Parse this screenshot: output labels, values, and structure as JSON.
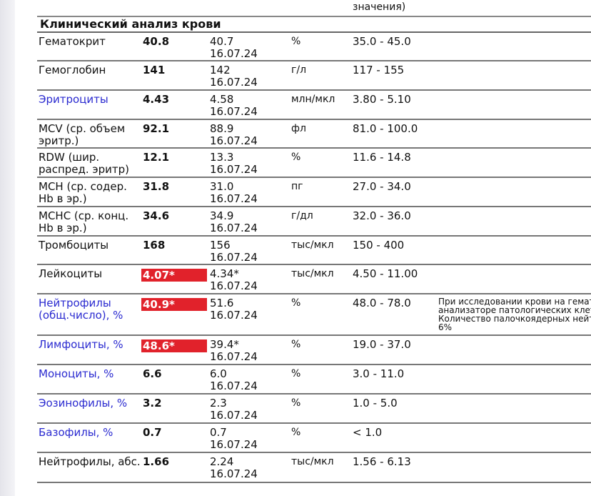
{
  "header": {
    "ref_header_tail": "значения)"
  },
  "section_title": "Клинический анализ крови",
  "rows": [
    {
      "name": "Гематокрит",
      "result": "40.8",
      "prev": "40.7",
      "prev_date": "16.07.24",
      "unit": "%",
      "ref": "35.0 - 45.0",
      "flag": false,
      "link": false
    },
    {
      "name": "Гемоглобин",
      "result": "141",
      "prev": "142",
      "prev_date": "16.07.24",
      "unit": "г/л",
      "ref": "117 - 155",
      "flag": false,
      "link": false
    },
    {
      "name": "Эритроциты",
      "result": "4.43",
      "prev": "4.58",
      "prev_date": "16.07.24",
      "unit": "млн/мкл",
      "ref": "3.80 - 5.10",
      "flag": false,
      "link": true
    },
    {
      "name": "MCV (ср. объем эритр.)",
      "result": "92.1",
      "prev": "88.9",
      "prev_date": "16.07.24",
      "unit": "фл",
      "ref": "81.0 - 100.0",
      "flag": false,
      "link": false
    },
    {
      "name": "RDW (шир. распред. эритр)",
      "result": "12.1",
      "prev": "13.3",
      "prev_date": "16.07.24",
      "unit": "%",
      "ref": "11.6 - 14.8",
      "flag": false,
      "link": false
    },
    {
      "name": "MCH (ср. содер. Hb в эр.)",
      "result": "31.8",
      "prev": "31.0",
      "prev_date": "16.07.24",
      "unit": "пг",
      "ref": "27.0 - 34.0",
      "flag": false,
      "link": false
    },
    {
      "name": "MCHC (ср. конц. Hb в эр.)",
      "result": "34.6",
      "prev": "34.9",
      "prev_date": "16.07.24",
      "unit": "г/дл",
      "ref": "32.0 - 36.0",
      "flag": false,
      "link": false
    },
    {
      "name": "Тромбоциты",
      "result": "168",
      "prev": "156",
      "prev_date": "16.07.24",
      "unit": "тыс/мкл",
      "ref": "150 - 400",
      "flag": false,
      "link": false
    },
    {
      "name": "Лейкоциты",
      "result": "4.07*",
      "prev": "4.34*",
      "prev_date": "16.07.24",
      "unit": "тыс/мкл",
      "ref": "4.50 - 11.00",
      "flag": true,
      "link": false
    },
    {
      "name": "Нейтрофилы (общ.число), %",
      "result": "40.9*",
      "prev": "51.6",
      "prev_date": "16.07.24",
      "unit": "%",
      "ref": "48.0 - 78.0",
      "flag": true,
      "link": true,
      "note": [
        "При исследовании крови на гемато",
        "анализаторе патологических клето",
        "Количество палочкоядерных нейтр",
        "6%"
      ]
    },
    {
      "name": "Лимфоциты, %",
      "result": "48.6*",
      "prev": "39.4*",
      "prev_date": "16.07.24",
      "unit": "%",
      "ref": "19.0 - 37.0",
      "flag": true,
      "link": true
    },
    {
      "name": "Моноциты, %",
      "result": "6.6",
      "prev": "6.0",
      "prev_date": "16.07.24",
      "unit": "%",
      "ref": "3.0 - 11.0",
      "flag": false,
      "link": true
    },
    {
      "name": "Эозинофилы, %",
      "result": "3.2",
      "prev": "2.3",
      "prev_date": "16.07.24",
      "unit": "%",
      "ref": "1.0 - 5.0",
      "flag": false,
      "link": true
    },
    {
      "name": "Базофилы, %",
      "result": "0.7",
      "prev": "0.7",
      "prev_date": "16.07.24",
      "unit": "%",
      "ref": "< 1.0",
      "flag": false,
      "link": true
    },
    {
      "name": "Нейтрофилы, абс.",
      "result": "1.66",
      "prev": "2.24",
      "prev_date": "16.07.24",
      "unit": "тыс/мкл",
      "ref": "1.56 - 6.13",
      "flag": false,
      "link": false
    }
  ],
  "colors": {
    "flag": "#e1222b",
    "link": "#2a2ad0"
  }
}
